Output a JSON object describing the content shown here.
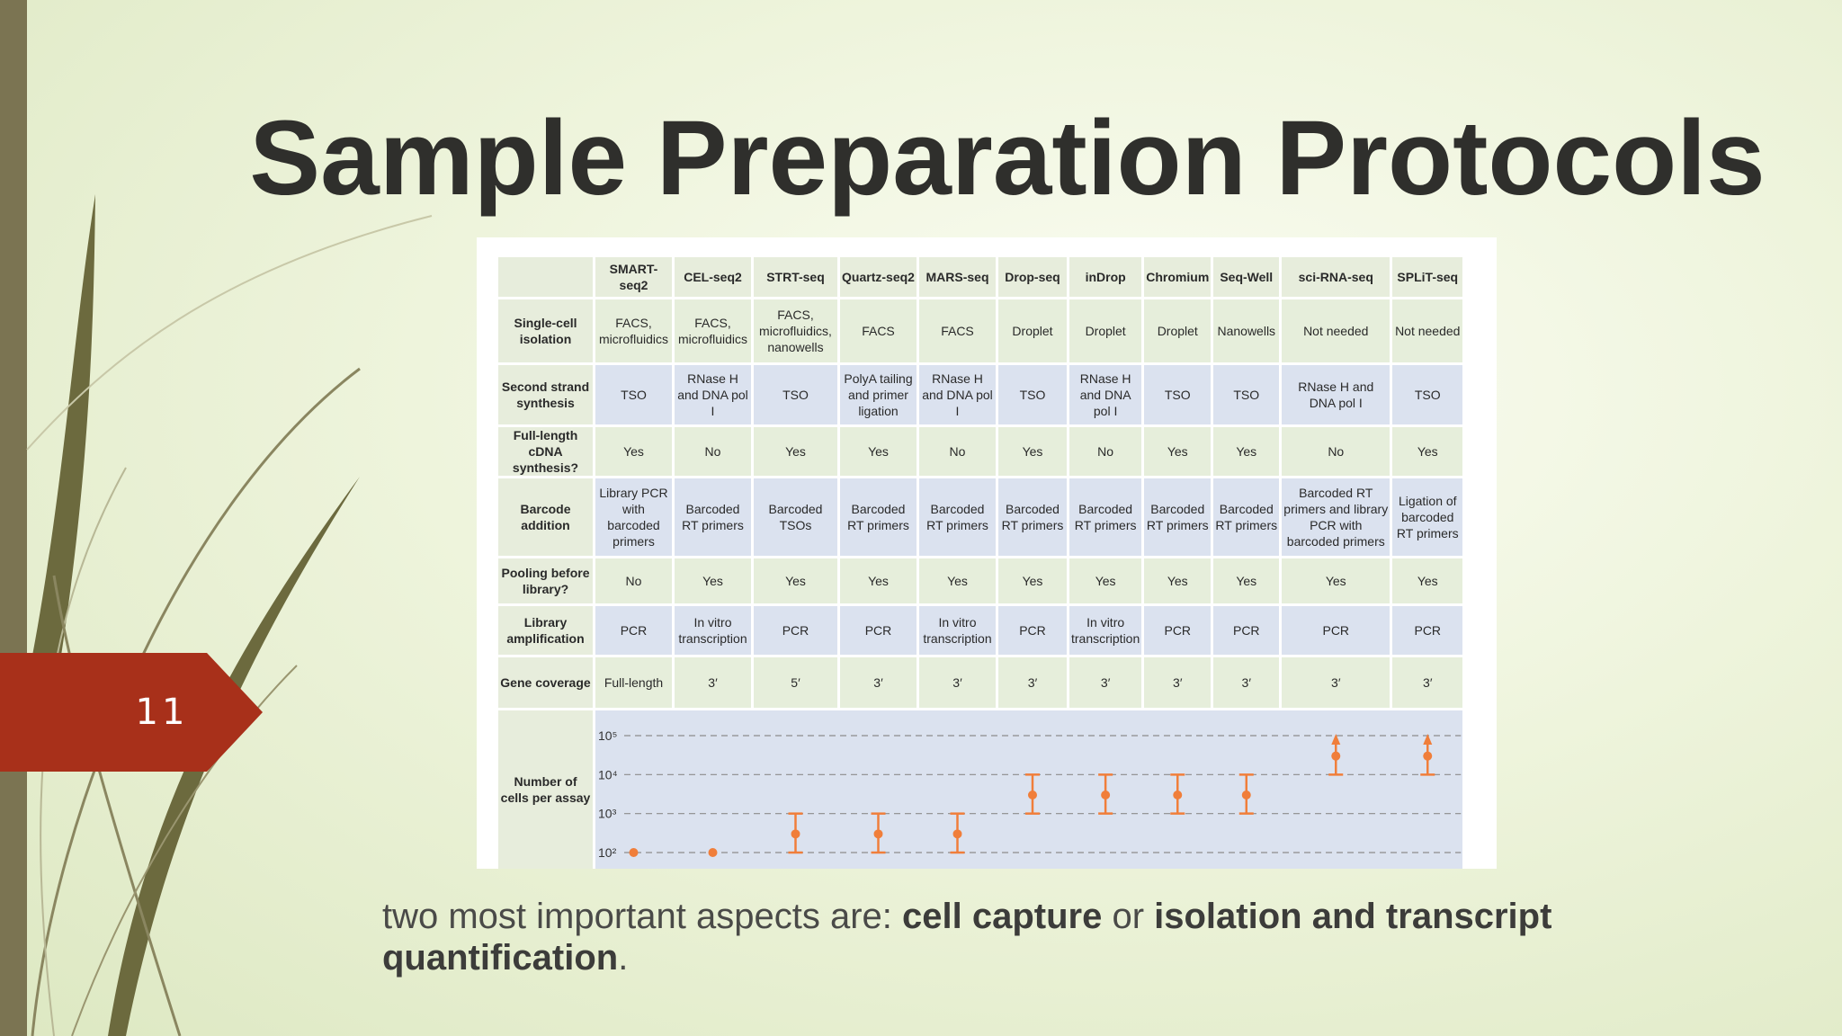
{
  "slide": {
    "title": "Sample Preparation Protocols",
    "number": "11",
    "caption": {
      "part1": "two most important aspects are: ",
      "bold1": "cell capture",
      "part2": " or ",
      "bold2": "isolation and transcript quantification",
      "part3": "."
    }
  },
  "colors": {
    "accent_tag": "#a8301a",
    "left_bar": "#7b7452",
    "plot_orange": "#f07e3a",
    "green_row": "#e6eedb",
    "blue_row": "#dbe2ef"
  },
  "table": {
    "columns": [
      "SMART-seq2",
      "CEL-seq2",
      "STRT-seq",
      "Quartz-seq2",
      "MARS-seq",
      "Drop-seq",
      "inDrop",
      "Chromium",
      "Seq-Well",
      "sci-RNA-seq",
      "SPLiT-seq"
    ],
    "rows": [
      {
        "label": "Single-cell isolation",
        "cells": [
          "FACS, microfluidics",
          "FACS, microfluidics",
          "FACS, microfluidics, nanowells",
          "FACS",
          "FACS",
          "Droplet",
          "Droplet",
          "Droplet",
          "Nanowells",
          "Not needed",
          "Not needed"
        ]
      },
      {
        "label": "Second strand synthesis",
        "cells": [
          "TSO",
          "RNase H and DNA pol I",
          "TSO",
          "PolyA tailing and primer ligation",
          "RNase H and DNA pol I",
          "TSO",
          "RNase H and DNA pol I",
          "TSO",
          "TSO",
          "RNase H and DNA pol I",
          "TSO"
        ]
      },
      {
        "label": "Full-length cDNA synthesis?",
        "cells": [
          "Yes",
          "No",
          "Yes",
          "Yes",
          "No",
          "Yes",
          "No",
          "Yes",
          "Yes",
          "No",
          "Yes"
        ]
      },
      {
        "label": "Barcode addition",
        "cells": [
          "Library PCR with barcoded primers",
          "Barcoded RT primers",
          "Barcoded TSOs",
          "Barcoded RT primers",
          "Barcoded RT primers",
          "Barcoded RT primers",
          "Barcoded RT primers",
          "Barcoded RT primers",
          "Barcoded RT primers",
          "Barcoded RT primers and library PCR with barcoded primers",
          "Ligation of barcoded RT primers"
        ]
      },
      {
        "label": "Pooling before library?",
        "cells": [
          "No",
          "Yes",
          "Yes",
          "Yes",
          "Yes",
          "Yes",
          "Yes",
          "Yes",
          "Yes",
          "Yes",
          "Yes"
        ]
      },
      {
        "label": "Library amplification",
        "cells": [
          "PCR",
          "In vitro transcription",
          "PCR",
          "PCR",
          "In vitro transcription",
          "PCR",
          "In vitro transcription",
          "PCR",
          "PCR",
          "PCR",
          "PCR"
        ]
      },
      {
        "label": "Gene coverage",
        "cells": [
          "Full-length",
          "3′",
          "5′",
          "3′",
          "3′",
          "3′",
          "3′",
          "3′",
          "3′",
          "3′",
          "3′"
        ]
      }
    ],
    "cells_row_label": "Number of cells per assay"
  },
  "chart_data": {
    "type": "scatter",
    "ylabel": "",
    "y_scale": "log",
    "y_ticks": [
      "10²",
      "10³",
      "10⁴",
      "10⁵"
    ],
    "ylim": [
      100,
      100000
    ],
    "grid": "dashed horizontal",
    "categories": [
      "SMART-seq2",
      "CEL-seq2",
      "STRT-seq",
      "Quartz-seq2",
      "MARS-seq",
      "Drop-seq",
      "inDrop",
      "Chromium",
      "Seq-Well",
      "sci-RNA-seq",
      "SPLiT-seq"
    ],
    "series": [
      {
        "points": [
          {
            "category": "SMART-seq2",
            "value": 100
          },
          {
            "category": "CEL-seq2",
            "value": 100
          },
          {
            "category": "STRT-seq",
            "value": 300,
            "low": 100,
            "high": 1000
          },
          {
            "category": "Quartz-seq2",
            "value": 300,
            "low": 100,
            "high": 1000
          },
          {
            "category": "MARS-seq",
            "value": 300,
            "low": 100,
            "high": 1000
          },
          {
            "category": "Drop-seq",
            "value": 3000,
            "low": 1000,
            "high": 10000
          },
          {
            "category": "inDrop",
            "value": 3000,
            "low": 1000,
            "high": 10000
          },
          {
            "category": "Chromium",
            "value": 3000,
            "low": 1000,
            "high": 10000
          },
          {
            "category": "Seq-Well",
            "value": 3000,
            "low": 1000,
            "high": 10000
          },
          {
            "category": "sci-RNA-seq",
            "value": 30000,
            "low": 10000,
            "high": 100000,
            "open_ended": true
          },
          {
            "category": "SPLiT-seq",
            "value": 30000,
            "low": 10000,
            "high": 100000,
            "open_ended": true
          }
        ]
      }
    ]
  }
}
